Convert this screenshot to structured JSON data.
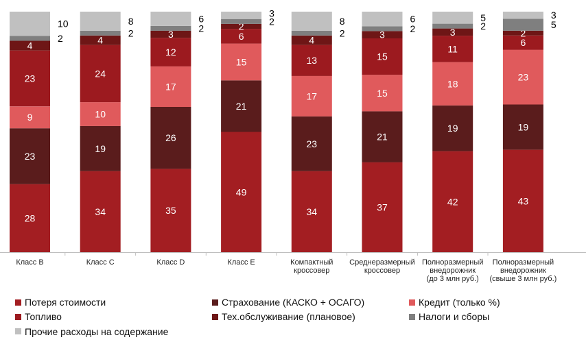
{
  "chart_data": {
    "type": "bar",
    "stacked": true,
    "normalized_percent": true,
    "categories": [
      [
        "Класс B"
      ],
      [
        "Класс C"
      ],
      [
        "Класс D"
      ],
      [
        "Класс E"
      ],
      [
        "Компактный",
        "кроссовер"
      ],
      [
        "Среднеразмерный",
        "кроссовер"
      ],
      [
        "Полноразмерный",
        "внедорожник",
        "(до 3 млн руб.)"
      ],
      [
        "Полноразмерный",
        "внедорожник",
        "(свыше 3 млн руб.)"
      ]
    ],
    "series": [
      {
        "name": "Потеря стоимости",
        "color": "#a31e22",
        "values": [
          28,
          34,
          35,
          49,
          34,
          37,
          42,
          43
        ]
      },
      {
        "name": "Страхование (КАСКО + ОСАГО)",
        "color": "#5a1c1c",
        "values": [
          23,
          19,
          26,
          21,
          23,
          21,
          19,
          19
        ]
      },
      {
        "name": "Кредит (только %)",
        "color": "#e05a5c",
        "values": [
          9,
          10,
          17,
          15,
          17,
          15,
          18,
          23
        ]
      },
      {
        "name": "Топливо",
        "color": "#9c1a1f",
        "values": [
          23,
          24,
          12,
          6,
          13,
          15,
          11,
          6
        ]
      },
      {
        "name": "Тех.обслуживание (плановое)",
        "color": "#6e1616",
        "values": [
          4,
          4,
          3,
          2,
          4,
          3,
          3,
          2
        ]
      },
      {
        "name": "Налоги и сборы",
        "color": "#7f7f7f",
        "values": [
          2,
          2,
          2,
          2,
          2,
          2,
          2,
          5
        ]
      },
      {
        "name": "Прочие расходы на содержание",
        "color": "#c0c0c0",
        "values": [
          10,
          8,
          6,
          3,
          8,
          6,
          5,
          3
        ]
      }
    ],
    "inside_label_series": [
      0,
      1,
      2,
      3,
      4
    ],
    "outside_label_series": [
      5,
      6
    ],
    "legend_position": "bottom",
    "grid": false
  }
}
